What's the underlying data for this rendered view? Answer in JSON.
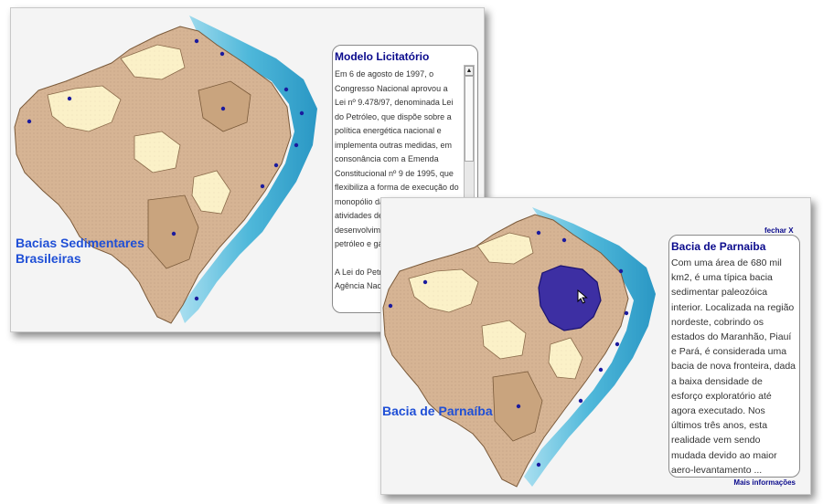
{
  "window_left": {
    "map_title_line1": "Bacias Sedimentares",
    "map_title_line2": "Brasileiras",
    "panel": {
      "title": "Modelo Licitatório",
      "paragraph1": "Em 6 de agosto de 1997, o Congresso Nacional aprovou a Lei nº 9.478/97, denominada Lei do Petróleo, que dispõe sobre a política energética nacional e implementa outras medidas, em consonância com a Emenda Constitucional nº 9 de 1995, que flexibiliza a forma de execução do monopólio da União para as atividades de exploração, desenvolvimento e produção de petróleo e gás natural.",
      "paragraph2": "A Lei do Petróleo também criou a Agência Nacional do Petróleo,"
    },
    "scrollbar": {
      "up_icon": "▲",
      "down_icon": "▼",
      "thumb_position": 0.0
    }
  },
  "window_right": {
    "map_title": "Bacia de Parnaíba",
    "close_label": "fechar  X",
    "panel": {
      "title": "Bacia de Parnaiba",
      "body": "Com uma área de 680 mil km2, é uma típica bacia sedimentar paleozóica interior. Localizada na região nordeste, cobrindo os estados do Maranhão, Piauí e Pará, é considerada uma bacia de nova fronteira, dada a baixa densidade de esforço exploratório até agora executado. Nos últimos três anos, esta realidade vem sendo mudada devido ao maior aero-levantamento ...",
      "more_link": "Mais informações"
    }
  },
  "colors": {
    "title_blue": "#1f4fd6",
    "panel_title_navy": "#0a0a8c",
    "basin_tan": "#d6b494",
    "cratons_cream": "#fbf1c8",
    "ocean_blue": "#3fa7cf",
    "highlight_purple": "#3d2fa3",
    "well_dot": "#1b1b9e"
  },
  "icons": [
    "scroll-up-arrow-icon",
    "scroll-down-arrow-icon",
    "mouse-pointer-icon",
    "well-dot-icon"
  ]
}
